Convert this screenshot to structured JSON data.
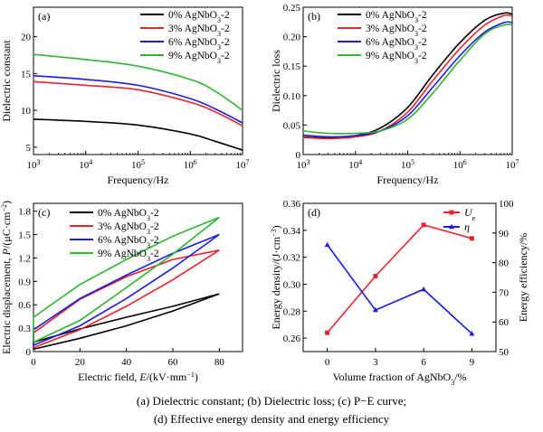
{
  "caption": {
    "line1": "(a) Dielectric constant; (b) Dielectric loss; (c) P−E curve;",
    "line2": "(d) Effective energy density and energy efficiency"
  },
  "chart_data": [
    {
      "id": "a",
      "type": "line",
      "panel_label": "(a)",
      "xlabel": "Frequency/Hz",
      "ylabel": "Dielectric constant",
      "xscale": "log",
      "xlim": [
        1000,
        10000000
      ],
      "ylim": [
        4,
        24
      ],
      "xticks": [
        1000,
        10000,
        100000,
        1000000,
        10000000
      ],
      "xtick_labels": [
        [
          "10",
          "3"
        ],
        [
          "10",
          "4"
        ],
        [
          "10",
          "5"
        ],
        [
          "10",
          "6"
        ],
        [
          "10",
          "7"
        ]
      ],
      "yticks": [
        5,
        10,
        15,
        20
      ],
      "ytick_labels": [
        "5",
        "10",
        "15",
        "20"
      ],
      "legend_position": "top-right",
      "series": [
        {
          "name": "0% AgNbO3-2",
          "name_parts": [
            "0% AgNbO",
            "3",
            "-2"
          ],
          "color": "#000000",
          "x": [
            1000,
            10000,
            100000,
            1000000,
            3000000,
            10000000
          ],
          "y": [
            8.8,
            8.5,
            8.0,
            6.8,
            5.8,
            4.6
          ]
        },
        {
          "name": "3% AgNbO3-2",
          "name_parts": [
            "3% AgNbO",
            "3",
            "-2"
          ],
          "color": "#e8242a",
          "x": [
            1000,
            10000,
            100000,
            1000000,
            3000000,
            10000000
          ],
          "y": [
            13.9,
            13.4,
            12.8,
            11.1,
            9.8,
            7.9
          ]
        },
        {
          "name": "6% AgNbO3-2",
          "name_parts": [
            "6% AgNbO",
            "3",
            "-2"
          ],
          "color": "#1c1cde",
          "x": [
            1000,
            10000,
            100000,
            1000000,
            3000000,
            10000000
          ],
          "y": [
            14.7,
            14.2,
            13.4,
            11.6,
            10.2,
            8.3
          ]
        },
        {
          "name": "9% AgNbO3-2",
          "name_parts": [
            "9% AgNbO",
            "3",
            "-2"
          ],
          "color": "#2fb52f",
          "x": [
            1000,
            10000,
            100000,
            1000000,
            3000000,
            10000000
          ],
          "y": [
            17.6,
            16.9,
            16.0,
            14.2,
            12.6,
            10.0
          ]
        }
      ]
    },
    {
      "id": "b",
      "type": "line",
      "panel_label": "(b)",
      "xlabel": "Frequency/Hz",
      "ylabel": "Dielectric loss",
      "xscale": "log",
      "xlim": [
        1000,
        10000000
      ],
      "ylim": [
        0,
        0.25
      ],
      "xticks": [
        1000,
        10000,
        100000,
        1000000,
        10000000
      ],
      "xtick_labels": [
        [
          "10",
          "3"
        ],
        [
          "10",
          "4"
        ],
        [
          "10",
          "5"
        ],
        [
          "10",
          "6"
        ],
        [
          "10",
          "7"
        ]
      ],
      "yticks": [
        0,
        0.05,
        0.1,
        0.15,
        0.2,
        0.25
      ],
      "ytick_labels": [
        "0",
        "0.05",
        "0.10",
        "0.15",
        "0.20",
        "0.25"
      ],
      "legend_position": "top-left",
      "series": [
        {
          "name": "0% AgNbO3-2",
          "name_parts": [
            "0% AgNbO",
            "3",
            "-2"
          ],
          "color": "#000000",
          "x": [
            1000,
            3000,
            10000,
            30000,
            100000,
            300000,
            1000000,
            3000000,
            7000000,
            10000000
          ],
          "y": [
            0.03,
            0.028,
            0.032,
            0.045,
            0.08,
            0.135,
            0.19,
            0.228,
            0.24,
            0.238
          ]
        },
        {
          "name": "3% AgNbO3-2",
          "name_parts": [
            "3% AgNbO",
            "3",
            "-2"
          ],
          "color": "#e8242a",
          "x": [
            1000,
            3000,
            10000,
            30000,
            100000,
            300000,
            1000000,
            3000000,
            7000000,
            10000000
          ],
          "y": [
            0.029,
            0.027,
            0.03,
            0.04,
            0.072,
            0.125,
            0.18,
            0.22,
            0.236,
            0.235
          ]
        },
        {
          "name": "6% AgNbO3-2",
          "name_parts": [
            "6% AgNbO",
            "3",
            "-2"
          ],
          "color": "#1c1cde",
          "x": [
            1000,
            3000,
            10000,
            30000,
            100000,
            300000,
            1000000,
            3000000,
            7000000,
            10000000
          ],
          "y": [
            0.033,
            0.03,
            0.032,
            0.04,
            0.066,
            0.114,
            0.168,
            0.208,
            0.224,
            0.224
          ]
        },
        {
          "name": "9% AgNbO3-2",
          "name_parts": [
            "9% AgNbO",
            "3",
            "-2"
          ],
          "color": "#2fb52f",
          "x": [
            1000,
            3000,
            10000,
            30000,
            100000,
            300000,
            1000000,
            3000000,
            7000000,
            10000000
          ],
          "y": [
            0.04,
            0.036,
            0.036,
            0.04,
            0.06,
            0.104,
            0.16,
            0.205,
            0.22,
            0.22
          ]
        }
      ]
    },
    {
      "id": "c",
      "type": "line",
      "panel_label": "(c)",
      "xlabel": "Electric field, E/(kV·mm⁻¹)",
      "xlabel_parts": [
        "Electric field, ",
        "E",
        "/(kV·mm",
        "−1",
        ")"
      ],
      "ylabel": "Electric displacement, P/(μC·cm⁻²)",
      "ylabel_parts": [
        "Electric displacement, ",
        "P",
        "/(μC·cm",
        "−2",
        ")"
      ],
      "xlim": [
        0,
        90
      ],
      "ylim": [
        0,
        1.9
      ],
      "xticks": [
        0,
        20,
        40,
        60,
        80
      ],
      "xtick_labels": [
        "0",
        "20",
        "40",
        "60",
        "80"
      ],
      "yticks": [
        0,
        0.3,
        0.6,
        0.9,
        1.2,
        1.5,
        1.8
      ],
      "ytick_labels": [
        "0",
        "0.3",
        "0.6",
        "0.9",
        "1.2",
        "1.5",
        "1.8"
      ],
      "legend_position": "top-left",
      "series": [
        {
          "name": "0% AgNbO3-2",
          "name_parts": [
            "0% AgNbO",
            "3",
            "-2"
          ],
          "color": "#000000",
          "x": [
            0,
            20,
            40,
            60,
            80,
            60,
            40,
            20,
            0,
            0
          ],
          "y": [
            0.03,
            0.17,
            0.33,
            0.52,
            0.74,
            0.58,
            0.44,
            0.29,
            0.12,
            0.03
          ]
        },
        {
          "name": "3% AgNbO3-2",
          "name_parts": [
            "3% AgNbO",
            "3",
            "-2"
          ],
          "color": "#e8242a",
          "x": [
            0,
            20,
            40,
            60,
            80,
            60,
            40,
            20,
            0,
            0
          ],
          "y": [
            0.05,
            0.28,
            0.58,
            0.92,
            1.3,
            1.18,
            0.96,
            0.67,
            0.24,
            0.05
          ]
        },
        {
          "name": "6% AgNbO3-2",
          "name_parts": [
            "6% AgNbO",
            "3",
            "-2"
          ],
          "color": "#1c1cde",
          "x": [
            0,
            20,
            40,
            60,
            80,
            60,
            40,
            20,
            0,
            0
          ],
          "y": [
            0.08,
            0.33,
            0.68,
            1.07,
            1.5,
            1.26,
            0.98,
            0.68,
            0.28,
            0.08
          ]
        },
        {
          "name": "9% AgNbO3-2",
          "name_parts": [
            "9% AgNbO",
            "3",
            "-2"
          ],
          "color": "#2fb52f",
          "x": [
            0,
            20,
            40,
            60,
            80,
            60,
            40,
            20,
            0,
            0
          ],
          "y": [
            0.12,
            0.4,
            0.82,
            1.25,
            1.72,
            1.48,
            1.18,
            0.86,
            0.44,
            0.12
          ]
        }
      ]
    },
    {
      "id": "d",
      "type": "line",
      "panel_label": "(d)",
      "xlabel": "Volume fraction of AgNbO3/%",
      "xlabel_parts": [
        "Volume fraction of AgNbO",
        "3",
        "/%"
      ],
      "ylabel": "Energy density/(J·cm⁻³)",
      "ylabel_parts": [
        "Energy density/(J·cm",
        "−3",
        ")"
      ],
      "y2label": "Energy efficiency/%",
      "categories": [
        0,
        3,
        6,
        9
      ],
      "xlim": [
        -1.5,
        10.5
      ],
      "ylim": [
        0.25,
        0.36
      ],
      "y2lim": [
        50,
        100
      ],
      "xticks": [
        0,
        3,
        6,
        9
      ],
      "xtick_labels": [
        "0",
        "3",
        "6",
        "9"
      ],
      "yticks": [
        0.26,
        0.28,
        0.3,
        0.32,
        0.34,
        0.36
      ],
      "ytick_labels": [
        "0.26",
        "0.28",
        "0.30",
        "0.32",
        "0.34",
        "0.36"
      ],
      "y2ticks": [
        50,
        60,
        70,
        80,
        90,
        100
      ],
      "y2tick_labels": [
        "50",
        "60",
        "70",
        "80",
        "90",
        "100"
      ],
      "legend_position": "top-right",
      "series": [
        {
          "name": "Ue",
          "name_parts": [
            "U",
            "e"
          ],
          "color": "#e8242a",
          "marker": "square",
          "axis": "left",
          "x": [
            0,
            3,
            6,
            9
          ],
          "y": [
            0.264,
            0.306,
            0.344,
            0.334
          ]
        },
        {
          "name": "η",
          "name_parts": [
            "η",
            ""
          ],
          "color": "#1c1cde",
          "marker": "triangle",
          "axis": "right",
          "x": [
            0,
            3,
            6,
            9
          ],
          "y": [
            86,
            64,
            71,
            56
          ]
        }
      ]
    }
  ]
}
